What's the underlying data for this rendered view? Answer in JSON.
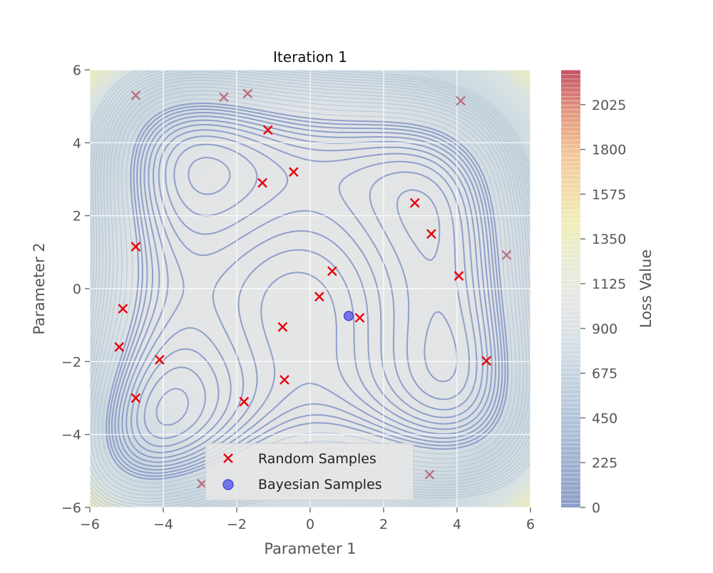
{
  "chart_data": {
    "type": "scatter",
    "title": "Iteration 1",
    "xlabel": "Parameter 1",
    "ylabel": "Parameter 2",
    "xlim": [
      -6,
      6
    ],
    "ylim": [
      -6,
      6
    ],
    "xticks": [
      -6,
      -4,
      -2,
      0,
      2,
      4,
      6
    ],
    "yticks": [
      -6,
      -4,
      -2,
      0,
      2,
      4,
      6
    ],
    "xtick_labels": [
      "−6",
      "−4",
      "−2",
      "0",
      "2",
      "4",
      "6"
    ],
    "ytick_labels": [
      "−6",
      "−4",
      "−2",
      "0",
      "2",
      "4",
      "6"
    ],
    "grid": true,
    "background": "contour of loss surface (Himmelblau-like, four minima)",
    "colorbar": {
      "label": "Loss Value",
      "range": [
        0,
        2200
      ],
      "ticks": [
        0,
        225,
        450,
        675,
        900,
        1125,
        1350,
        1575,
        1800,
        2025
      ],
      "colormap": "RdYlBu_r"
    },
    "legend": {
      "location": "bottom-center"
    },
    "series": [
      {
        "name": "Random Samples",
        "marker": "x",
        "color": "#e8000b",
        "points": [
          [
            -4.75,
            5.3
          ],
          [
            -2.35,
            5.25
          ],
          [
            -1.7,
            5.35
          ],
          [
            -1.15,
            4.35
          ],
          [
            4.1,
            5.15
          ],
          [
            -1.3,
            2.9
          ],
          [
            -0.45,
            3.2
          ],
          [
            2.85,
            2.35
          ],
          [
            3.3,
            1.5
          ],
          [
            -4.75,
            1.15
          ],
          [
            5.35,
            0.92
          ],
          [
            0.6,
            0.48
          ],
          [
            4.05,
            0.35
          ],
          [
            0.25,
            -0.22
          ],
          [
            -5.1,
            -0.55
          ],
          [
            1.35,
            -0.8
          ],
          [
            -0.75,
            -1.05
          ],
          [
            -5.2,
            -1.6
          ],
          [
            -4.1,
            -1.95
          ],
          [
            4.8,
            -1.98
          ],
          [
            -0.7,
            -2.5
          ],
          [
            -4.75,
            -3.0
          ],
          [
            -1.8,
            -3.1
          ],
          [
            3.25,
            -5.1
          ],
          [
            -2.95,
            -5.35
          ]
        ]
      },
      {
        "name": "Bayesian Samples",
        "marker": "o",
        "color": "#4f4fe8",
        "points": [
          [
            1.05,
            -0.75
          ]
        ]
      }
    ]
  }
}
